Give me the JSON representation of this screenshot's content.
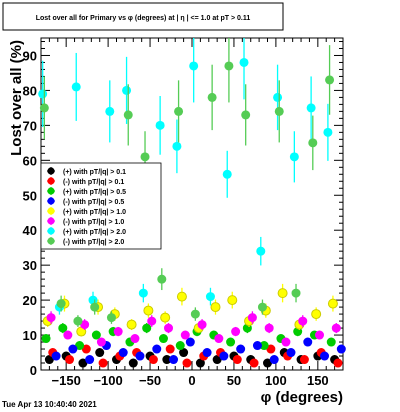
{
  "chart_data": {
    "type": "scatter",
    "title": "Lost over all for Primary vs φ (degrees) at | η | <= 1.0 at pT > 0.11",
    "xlabel": "φ (degrees)",
    "ylabel": "Lost over all (%)",
    "xlim": [
      -180,
      180
    ],
    "ylim": [
      0,
      95
    ],
    "x_ticks": [
      -150,
      -100,
      -50,
      0,
      50,
      100,
      150
    ],
    "x_tick_labels": [
      "−150",
      "−100",
      "−50",
      "0",
      "50",
      "100",
      "150"
    ],
    "y_ticks": [
      0,
      10,
      20,
      30,
      40,
      50,
      60,
      70,
      80,
      90
    ],
    "y_tick_labels": [
      "0",
      "10",
      "20",
      "30",
      "40",
      "50",
      "60",
      "70",
      "80",
      "90"
    ],
    "legend_position": "left-middle",
    "grid": false,
    "timestamp": "Tue Apr 13 10:40:40 2021",
    "series": [
      {
        "name": "(+) with pT/|q| > 0.1",
        "color": "#000000",
        "x": [
          -170,
          -150,
          -130,
          -110,
          -90,
          -70,
          -50,
          -30,
          -10,
          10,
          30,
          50,
          70,
          90,
          110,
          130,
          150,
          170
        ],
        "y": [
          3,
          4,
          2,
          5,
          3,
          2,
          4,
          3,
          5,
          2,
          3,
          4,
          3,
          2,
          5,
          3,
          4,
          3
        ]
      },
      {
        "name": "(-) with pT/|q| > 0.1",
        "color": "#ff0000",
        "x": [
          -166,
          -146,
          -126,
          -106,
          -86,
          -66,
          -46,
          -26,
          -6,
          14,
          34,
          54,
          74,
          94,
          114,
          134,
          154,
          174
        ],
        "y": [
          5,
          3,
          6,
          2,
          4,
          5,
          3,
          6,
          2,
          4,
          5,
          3,
          2,
          6,
          4,
          3,
          5,
          2
        ]
      },
      {
        "name": "(+) with pT/|q| > 0.5",
        "color": "#00cc00",
        "x": [
          -174,
          -154,
          -134,
          -114,
          -94,
          -74,
          -54,
          -34,
          -14,
          6,
          26,
          46,
          66,
          86,
          106,
          126,
          146,
          166
        ],
        "y": [
          9,
          12,
          7,
          10,
          11,
          8,
          12,
          9,
          7,
          11,
          10,
          8,
          12,
          7,
          9,
          11,
          10,
          8
        ]
      },
      {
        "name": "(-) with pT/|q| > 0.5",
        "color": "#0000ff",
        "x": [
          -162,
          -142,
          -122,
          -102,
          -82,
          -62,
          -42,
          -22,
          -2,
          18,
          38,
          58,
          78,
          98,
          118,
          138,
          158,
          178
        ],
        "y": [
          4,
          6,
          3,
          7,
          5,
          4,
          6,
          3,
          8,
          5,
          4,
          6,
          7,
          3,
          5,
          8,
          4,
          6
        ]
      },
      {
        "name": "(+) with pT/|q| > 1.0",
        "color": "#ffff00",
        "x": [
          -172,
          -152,
          -132,
          -112,
          -92,
          -72,
          -52,
          -32,
          -12,
          8,
          28,
          48,
          68,
          88,
          108,
          128,
          148,
          168
        ],
        "y": [
          14,
          19,
          11,
          18,
          16,
          13,
          17,
          15,
          21,
          12,
          18,
          20,
          14,
          17,
          22,
          13,
          16,
          19
        ]
      },
      {
        "name": "(-) with pT/|q| > 1.0",
        "color": "#ff00ff",
        "x": [
          -168,
          -148,
          -128,
          -108,
          -88,
          -68,
          -48,
          -28,
          -8,
          12,
          32,
          52,
          72,
          92,
          112,
          132,
          152,
          172
        ],
        "y": [
          15,
          10,
          13,
          8,
          11,
          9,
          14,
          12,
          10,
          13,
          9,
          11,
          15,
          12,
          8,
          14,
          10,
          12
        ]
      },
      {
        "name": "(+) with pT/|q| > 2.0",
        "color": "#00ffff",
        "x": [
          -178,
          -158,
          -138,
          -118,
          -98,
          -78,
          -58,
          -38,
          -18,
          2,
          22,
          42,
          62,
          82,
          102,
          122,
          142,
          162
        ],
        "y": [
          79,
          18,
          81,
          20,
          74,
          80,
          22,
          70,
          64,
          87,
          21,
          56,
          88,
          34,
          78,
          61,
          75,
          68
        ]
      },
      {
        "name": "(-) with pT/|q| > 2.0",
        "color": "#55cc55",
        "x": [
          -176,
          -156,
          -136,
          -116,
          -96,
          -76,
          -56,
          -36,
          -16,
          4,
          24,
          44,
          64,
          84,
          104,
          124,
          144,
          164
        ],
        "y": [
          75,
          19,
          14,
          18,
          15,
          73,
          61,
          26,
          74,
          16,
          78,
          87,
          73,
          18,
          74,
          22,
          65,
          83
        ]
      }
    ]
  }
}
